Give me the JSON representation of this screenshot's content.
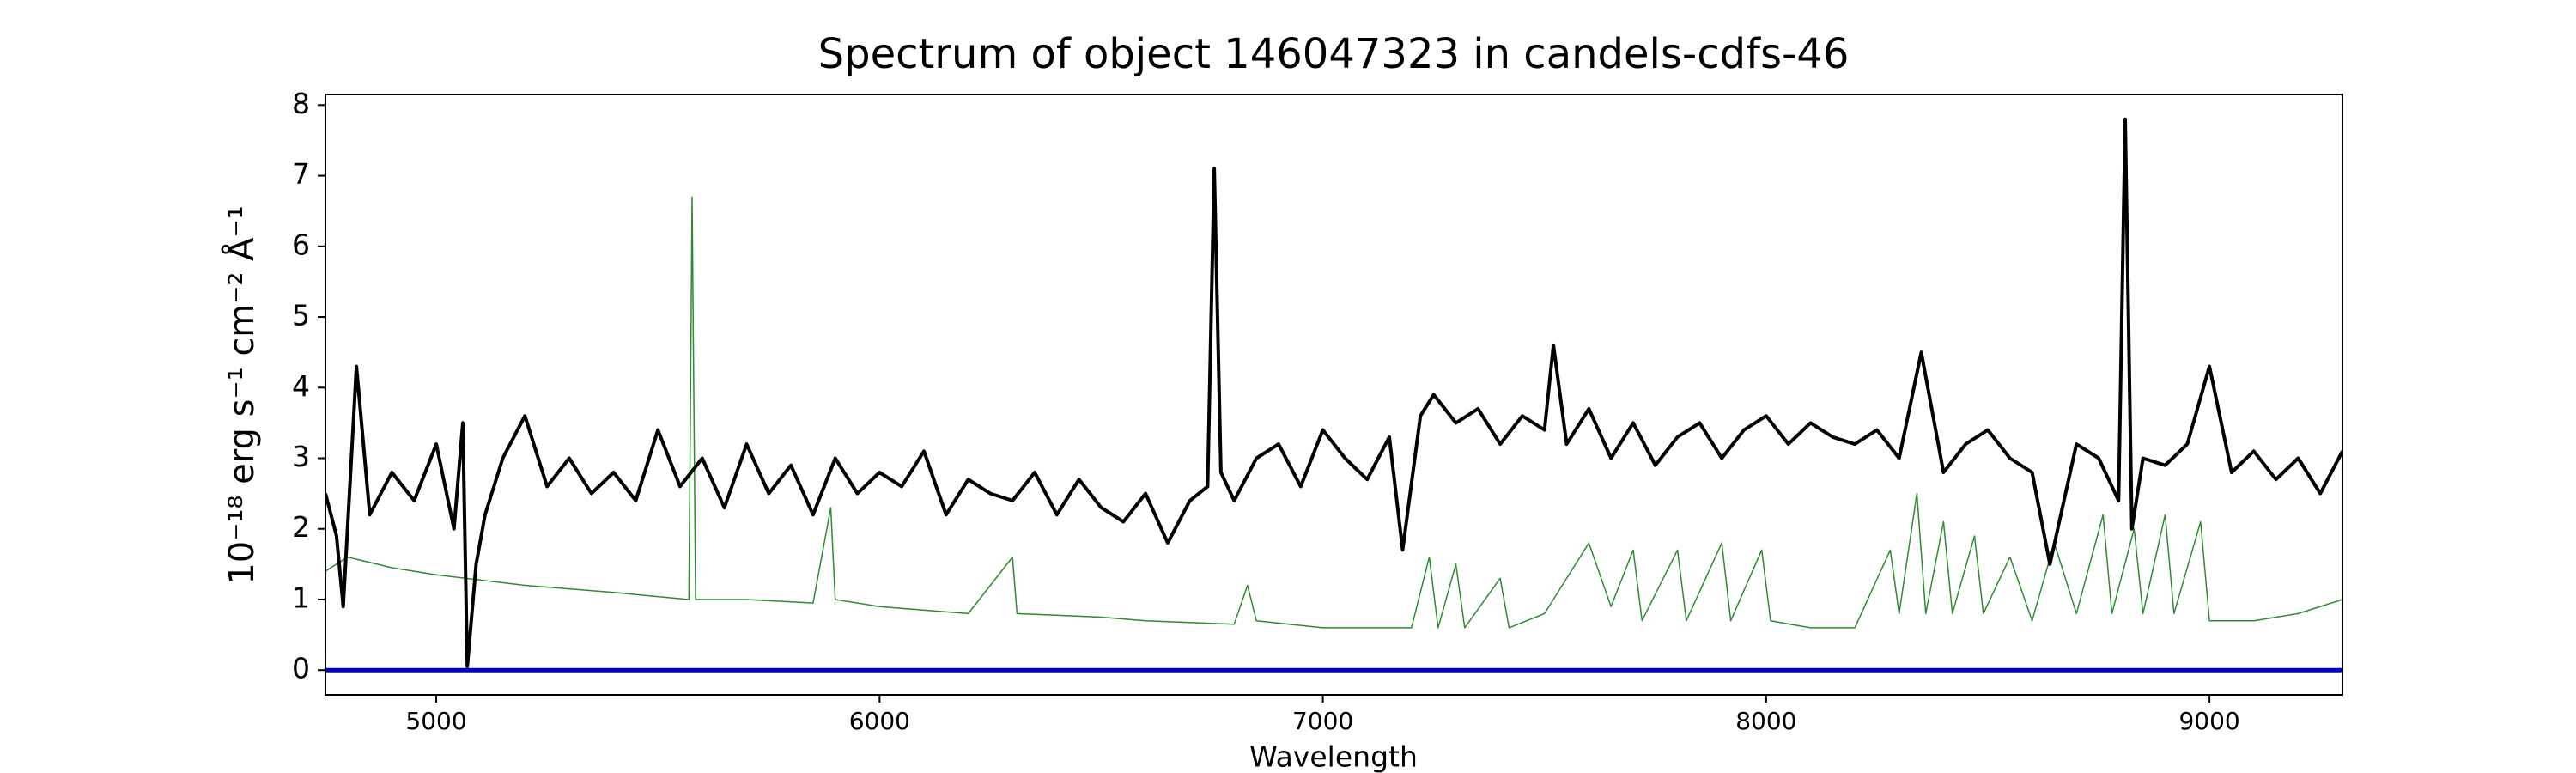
{
  "chart_data": {
    "type": "line",
    "title": "Spectrum of object 146047323 in candels-cdfs-46",
    "xlabel": "Wavelength",
    "ylabel": "10⁻¹⁸ erg s⁻¹ cm⁻² Å⁻¹",
    "xlim": [
      4750,
      9300
    ],
    "ylim": [
      -0.35,
      8.15
    ],
    "xticks": [
      5000,
      6000,
      7000,
      8000,
      9000
    ],
    "yticks": [
      0,
      1,
      2,
      3,
      4,
      5,
      6,
      7,
      8
    ],
    "grid": false,
    "series": [
      {
        "color": "#2e8b2e",
        "width": 1.5,
        "x": [
          4750,
          4800,
          4900,
          5000,
          5200,
          5400,
          5570,
          5577,
          5585,
          5700,
          5850,
          5890,
          5900,
          6000,
          6200,
          6300,
          6310,
          6500,
          6600,
          6800,
          6830,
          6850,
          7000,
          7200,
          7240,
          7260,
          7300,
          7320,
          7400,
          7420,
          7500,
          7600,
          7650,
          7700,
          7720,
          7800,
          7820,
          7900,
          7920,
          7990,
          8010,
          8100,
          8200,
          8280,
          8300,
          8340,
          8360,
          8400,
          8420,
          8470,
          8490,
          8550,
          8600,
          8650,
          8700,
          8760,
          8780,
          8830,
          8850,
          8900,
          8920,
          8980,
          9000,
          9100,
          9200,
          9300
        ],
        "values": [
          1.4,
          1.6,
          1.45,
          1.35,
          1.2,
          1.1,
          1.0,
          6.7,
          1.0,
          1.0,
          0.95,
          2.3,
          1.0,
          0.9,
          0.8,
          1.6,
          0.8,
          0.75,
          0.7,
          0.65,
          1.2,
          0.7,
          0.6,
          0.6,
          1.6,
          0.6,
          1.5,
          0.6,
          1.3,
          0.6,
          0.8,
          1.8,
          0.9,
          1.7,
          0.7,
          1.7,
          0.7,
          1.8,
          0.7,
          1.7,
          0.7,
          0.6,
          0.6,
          1.7,
          0.8,
          2.5,
          0.8,
          2.1,
          0.8,
          1.9,
          0.8,
          1.6,
          0.7,
          1.8,
          0.8,
          2.2,
          0.8,
          2.0,
          0.8,
          2.2,
          0.8,
          2.1,
          0.7,
          0.7,
          0.8,
          1.0
        ]
      },
      {
        "color": "#000000",
        "width": 4,
        "x": [
          4750,
          4775,
          4790,
          4820,
          4850,
          4900,
          4950,
          5000,
          5040,
          5060,
          5070,
          5090,
          5110,
          5150,
          5200,
          5250,
          5300,
          5350,
          5400,
          5450,
          5500,
          5550,
          5600,
          5650,
          5700,
          5750,
          5800,
          5850,
          5900,
          5950,
          6000,
          6050,
          6100,
          6150,
          6200,
          6250,
          6300,
          6350,
          6400,
          6450,
          6500,
          6550,
          6600,
          6650,
          6700,
          6740,
          6755,
          6770,
          6800,
          6850,
          6900,
          6950,
          7000,
          7050,
          7100,
          7150,
          7180,
          7220,
          7250,
          7300,
          7350,
          7400,
          7450,
          7500,
          7520,
          7550,
          7600,
          7650,
          7700,
          7750,
          7800,
          7850,
          7900,
          7950,
          8000,
          8050,
          8100,
          8150,
          8200,
          8250,
          8300,
          8350,
          8400,
          8450,
          8500,
          8550,
          8600,
          8640,
          8700,
          8750,
          8795,
          8810,
          8825,
          8850,
          8900,
          8950,
          9000,
          9050,
          9100,
          9150,
          9200,
          9250,
          9300
        ],
        "values": [
          2.5,
          1.9,
          0.9,
          4.3,
          2.2,
          2.8,
          2.4,
          3.2,
          2.0,
          3.5,
          0.05,
          1.5,
          2.2,
          3.0,
          3.6,
          2.6,
          3.0,
          2.5,
          2.8,
          2.4,
          3.4,
          2.6,
          3.0,
          2.3,
          3.2,
          2.5,
          2.9,
          2.2,
          3.0,
          2.5,
          2.8,
          2.6,
          3.1,
          2.2,
          2.7,
          2.5,
          2.4,
          2.8,
          2.2,
          2.7,
          2.3,
          2.1,
          2.5,
          1.8,
          2.4,
          2.6,
          7.1,
          2.8,
          2.4,
          3.0,
          3.2,
          2.6,
          3.4,
          3.0,
          2.7,
          3.3,
          1.7,
          3.6,
          3.9,
          3.5,
          3.7,
          3.2,
          3.6,
          3.4,
          4.6,
          3.2,
          3.7,
          3.0,
          3.5,
          2.9,
          3.3,
          3.5,
          3.0,
          3.4,
          3.6,
          3.2,
          3.5,
          3.3,
          3.2,
          3.4,
          3.0,
          4.5,
          2.8,
          3.2,
          3.4,
          3.0,
          2.8,
          1.5,
          3.2,
          3.0,
          2.4,
          7.8,
          2.0,
          3.0,
          2.9,
          3.2,
          4.3,
          2.8,
          3.1,
          2.7,
          3.0,
          2.5,
          3.1
        ]
      },
      {
        "color": "#0000cd",
        "width": 5,
        "x": [
          4750,
          9300
        ],
        "values": [
          0,
          0
        ]
      }
    ]
  }
}
